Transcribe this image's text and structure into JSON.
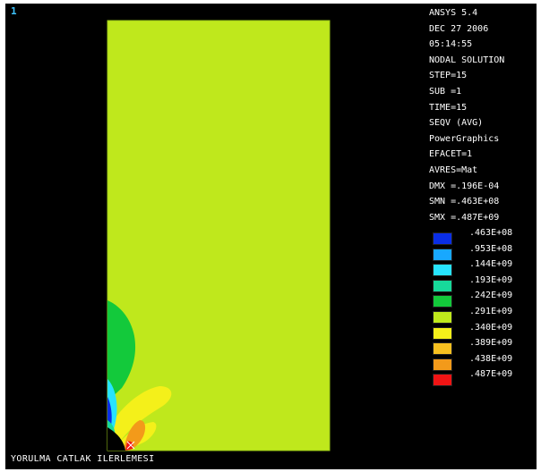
{
  "window_number": "1",
  "footer_title": "YORULMA CATLAK ILERLEMESI",
  "info": [
    "ANSYS 5.4",
    "DEC 27 2006",
    "05:14:55",
    "NODAL SOLUTION",
    "STEP=15",
    "SUB =1",
    "TIME=15",
    "SEQV      (AVG)",
    "PowerGraphics",
    "EFACET=1",
    "AVRES=Mat",
    "DMX =.196E-04",
    "SMN =.463E+08",
    "SMX =.487E+09"
  ],
  "legend": [
    {
      "value": ".463E+08",
      "color": "#0a2ee6"
    },
    {
      "value": ".953E+08",
      "color": "#18a8ff"
    },
    {
      "value": ".144E+09",
      "color": "#27e3ff"
    },
    {
      "value": ".193E+09",
      "color": "#17d99a"
    },
    {
      "value": ".242E+09",
      "color": "#13c93b"
    },
    {
      "value": ".291E+09",
      "color": "#bfe81c"
    },
    {
      "value": ".340E+09",
      "color": "#f4f01a"
    },
    {
      "value": ".389E+09",
      "color": "#f7c020"
    },
    {
      "value": ".438E+09",
      "color": "#f39a1a"
    },
    {
      "value": ".487E+09",
      "color": "#f01414"
    }
  ],
  "colors": {
    "background": "#000000",
    "model_fill": "#bfe81c",
    "text": "#ffffff",
    "window_number": "#3ec4ff"
  }
}
